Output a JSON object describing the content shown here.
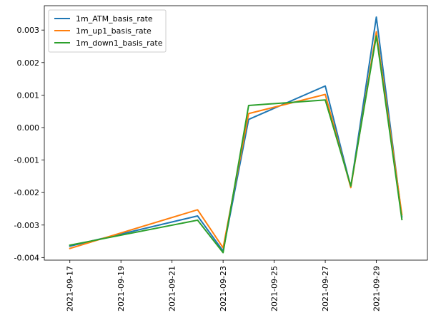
{
  "chart_data": {
    "type": "line",
    "title": "",
    "xlabel": "",
    "ylabel": "",
    "x": [
      "2021-09-17",
      "2021-09-22",
      "2021-09-23",
      "2021-09-24",
      "2021-09-27",
      "2021-09-28",
      "2021-09-29",
      "2021-09-30"
    ],
    "series": [
      {
        "name": "1m_ATM_basis_rate",
        "color": "#1f77b4",
        "values": [
          -0.00365,
          -0.00272,
          -0.0038,
          0.00025,
          0.00128,
          -0.00183,
          0.0034,
          -0.00275
        ]
      },
      {
        "name": "1m_up1_basis_rate",
        "color": "#ff7f0e",
        "values": [
          -0.00372,
          -0.00253,
          -0.0037,
          0.00043,
          0.00102,
          -0.00185,
          0.00295,
          -0.00268
        ]
      },
      {
        "name": "1m_down1_basis_rate",
        "color": "#2ca02c",
        "values": [
          -0.00362,
          -0.00285,
          -0.00385,
          0.00068,
          0.00085,
          -0.0018,
          0.00282,
          -0.00283
        ]
      }
    ],
    "xlim": [
      "2021-09-16",
      "2021-10-01"
    ],
    "ylim": [
      -0.00408,
      0.00375
    ],
    "xticks": [
      "2021-09-17",
      "2021-09-19",
      "2021-09-21",
      "2021-09-23",
      "2021-09-25",
      "2021-09-27",
      "2021-09-29"
    ],
    "yticks": [
      -0.004,
      -0.003,
      -0.002,
      -0.001,
      0.0,
      0.001,
      0.002,
      0.003
    ],
    "ytick_labels": [
      "-0.004",
      "-0.003",
      "-0.002",
      "-0.001",
      "0.000",
      "0.001",
      "0.002",
      "0.003"
    ],
    "grid": false,
    "legend_position": "top-left"
  }
}
